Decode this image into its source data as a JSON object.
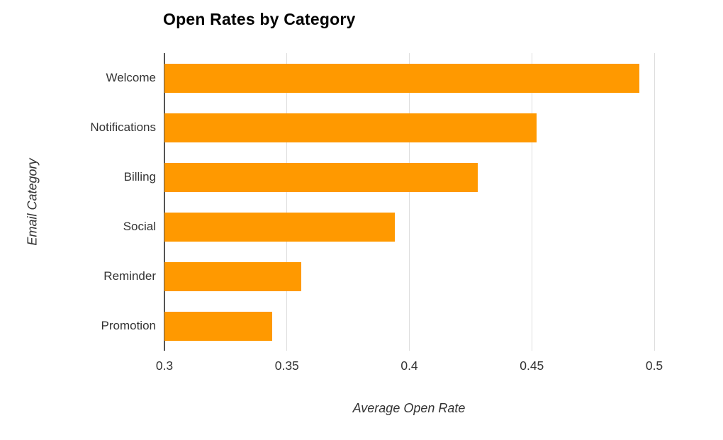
{
  "chart_data": {
    "type": "bar",
    "orientation": "horizontal",
    "title": "Open Rates by Category",
    "categories": [
      "Welcome",
      "Notifications",
      "Billing",
      "Social",
      "Reminder",
      "Promotion"
    ],
    "values": [
      0.494,
      0.452,
      0.428,
      0.394,
      0.356,
      0.344
    ],
    "xlabel": "Average Open Rate",
    "ylabel": "Email Category",
    "xlim": [
      0.3,
      0.5
    ],
    "xticks": [
      0.3,
      0.35,
      0.4,
      0.45,
      0.5
    ],
    "xtick_labels": [
      "0.3",
      "0.35",
      "0.4",
      "0.45",
      "0.5"
    ],
    "bar_color": "#FF9900",
    "axis_line_color": "#555555",
    "gridline_color": "#dddddd",
    "text_color": "#333333",
    "title_color": "#000000",
    "background_color": "#ffffff",
    "grid": true,
    "legend": "none"
  }
}
